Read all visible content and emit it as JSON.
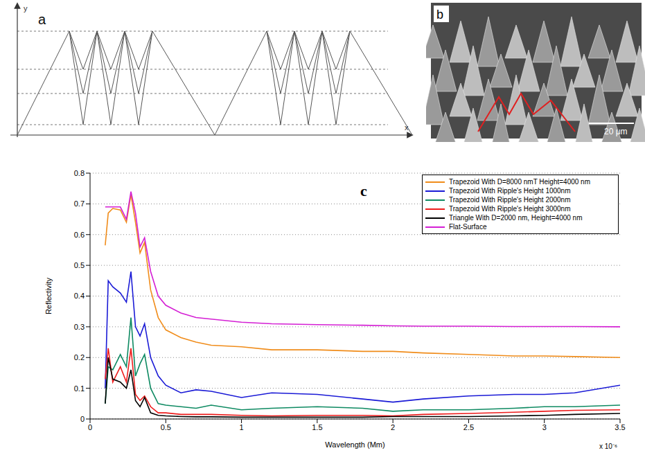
{
  "panels": {
    "a": {
      "label": "a",
      "axis_labels": {
        "x": "x",
        "y": "y"
      }
    },
    "b": {
      "label": "b",
      "scale_bar": "20 μm"
    }
  },
  "chart_data": {
    "type": "line",
    "annotations": [
      "c",
      "x 10⁻⁶"
    ],
    "x_label": "Wavelength (Mm)",
    "y_label": "Reflectivity",
    "x": [
      1e-07,
      1.2e-07,
      1.5e-07,
      2e-07,
      2.4e-07,
      2.7e-07,
      3e-07,
      3.3e-07,
      3.6e-07,
      4e-07,
      4.5e-07,
      5e-07,
      6e-07,
      7e-07,
      8e-07,
      1e-06,
      1.2e-06,
      1.5e-06,
      1.8e-06,
      2e-06,
      2.2e-06,
      2.5e-06,
      2.8e-06,
      3e-06,
      3.2e-06,
      3.5e-06
    ],
    "series": [
      {
        "name": "Trapezoid With D=8000 nmT Height=4000 nm",
        "color": "#f08c1a",
        "values": [
          0.565,
          0.67,
          0.685,
          0.68,
          0.64,
          0.73,
          0.64,
          0.54,
          0.575,
          0.42,
          0.33,
          0.29,
          0.265,
          0.25,
          0.24,
          0.235,
          0.225,
          0.225,
          0.22,
          0.22,
          0.215,
          0.21,
          0.205,
          0.205,
          0.203,
          0.2
        ]
      },
      {
        "name": "Trapezoid With Ripple's Height 1000nm",
        "color": "#1a1ad6",
        "values": [
          0.1,
          0.45,
          0.43,
          0.41,
          0.38,
          0.48,
          0.3,
          0.27,
          0.31,
          0.2,
          0.14,
          0.11,
          0.085,
          0.095,
          0.09,
          0.07,
          0.085,
          0.08,
          0.065,
          0.055,
          0.065,
          0.075,
          0.08,
          0.08,
          0.085,
          0.11
        ]
      },
      {
        "name": "Trapezoid With Ripple's Height 2000nm",
        "color": "#0e8a62",
        "values": [
          0.05,
          0.17,
          0.16,
          0.21,
          0.17,
          0.33,
          0.14,
          0.18,
          0.21,
          0.1,
          0.05,
          0.045,
          0.04,
          0.035,
          0.045,
          0.03,
          0.035,
          0.04,
          0.035,
          0.025,
          0.03,
          0.03,
          0.035,
          0.04,
          0.04,
          0.045
        ]
      },
      {
        "name": "Trapezoid With Ripple's Height 3000nm",
        "color": "#ee1c1c",
        "values": [
          0.13,
          0.23,
          0.12,
          0.17,
          0.12,
          0.23,
          0.08,
          0.06,
          0.075,
          0.04,
          0.02,
          0.02,
          0.015,
          0.015,
          0.015,
          0.012,
          0.01,
          0.012,
          0.012,
          0.01,
          0.015,
          0.018,
          0.022,
          0.025,
          0.028,
          0.03
        ]
      },
      {
        "name": "Triangle With D=2000 nm, Height=4000 nm",
        "color": "#000000",
        "values": [
          0.05,
          0.2,
          0.13,
          0.12,
          0.1,
          0.16,
          0.06,
          0.04,
          0.07,
          0.02,
          0.012,
          0.01,
          0.008,
          0.007,
          0.007,
          0.006,
          0.006,
          0.006,
          0.006,
          0.008,
          0.008,
          0.008,
          0.01,
          0.012,
          0.015,
          0.018
        ]
      },
      {
        "name": "Flat-Surface",
        "color": "#d41fd4",
        "values": [
          0.69,
          0.69,
          0.69,
          0.69,
          0.65,
          0.74,
          0.67,
          0.56,
          0.59,
          0.48,
          0.4,
          0.37,
          0.345,
          0.33,
          0.325,
          0.315,
          0.31,
          0.307,
          0.305,
          0.303,
          0.302,
          0.302,
          0.301,
          0.301,
          0.301,
          0.3
        ]
      }
    ],
    "xlim": [
      0,
      3.5e-06
    ],
    "xticks": [
      {
        "value": 0,
        "label": "0"
      },
      {
        "value": 5e-07,
        "label": "0.5"
      },
      {
        "value": 1e-06,
        "label": "1"
      },
      {
        "value": 1.5e-06,
        "label": "1.5"
      },
      {
        "value": 2e-06,
        "label": "2"
      },
      {
        "value": 2.5e-06,
        "label": "2.5"
      },
      {
        "value": 3e-06,
        "label": "3"
      },
      {
        "value": 3.5e-06,
        "label": "3.5"
      }
    ],
    "ylim": [
      0,
      0.8
    ],
    "yticks": [
      0,
      0.1,
      0.2,
      0.3,
      0.4,
      0.5,
      0.6,
      0.7,
      0.8
    ],
    "grid": true,
    "legend": "upper right"
  }
}
